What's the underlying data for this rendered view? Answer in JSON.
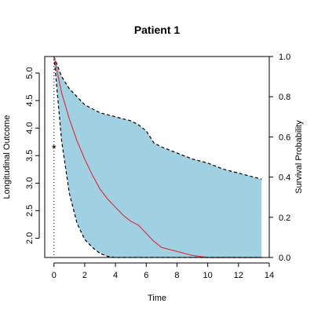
{
  "chart_data": {
    "type": "area",
    "title": "Patient 1",
    "xlabel": "Time",
    "ylabel_left": "Longitudinal Outcome",
    "ylabel_right": "Survival Probability",
    "xlim": [
      -0.6,
      14
    ],
    "ylim_left": [
      1.65,
      5.3
    ],
    "ylim_right": [
      0,
      1
    ],
    "x_ticks": [
      "0",
      "2",
      "4",
      "6",
      "8",
      "10",
      "12",
      "14"
    ],
    "y_left_ticks": [
      "2.0",
      "2.5",
      "3.0",
      "3.5",
      "4.0",
      "4.5",
      "5.0"
    ],
    "y_right_ticks": [
      "0.0",
      "0.2",
      "0.4",
      "0.6",
      "0.8",
      "1.0"
    ],
    "last_visit_time": 0,
    "observed_measurement": {
      "x": 0,
      "y": 3.63,
      "marker": "*"
    },
    "survival_mean": {
      "name": "Survival Probability",
      "color": "#e0323f",
      "x": [
        0,
        0.5,
        1,
        1.5,
        2,
        2.5,
        3,
        3.5,
        4,
        4.5,
        5,
        5.5,
        6,
        6.5,
        7,
        8,
        9,
        10,
        11,
        12,
        13.5
      ],
      "y": [
        1.0,
        0.82,
        0.69,
        0.58,
        0.49,
        0.41,
        0.34,
        0.29,
        0.25,
        0.21,
        0.18,
        0.16,
        0.12,
        0.08,
        0.05,
        0.03,
        0.01,
        0.0,
        0.0,
        0.0,
        0.0
      ]
    },
    "survival_upper": {
      "x": [
        0,
        0.5,
        1,
        1.5,
        2,
        2.5,
        3,
        3.5,
        4,
        4.5,
        5,
        5.5,
        6,
        6.5,
        7,
        8,
        9,
        10,
        11,
        12,
        13,
        13.5
      ],
      "y": [
        1.0,
        0.9,
        0.84,
        0.8,
        0.76,
        0.74,
        0.72,
        0.71,
        0.7,
        0.69,
        0.68,
        0.66,
        0.63,
        0.57,
        0.55,
        0.52,
        0.49,
        0.47,
        0.44,
        0.42,
        0.4,
        0.39
      ]
    },
    "survival_lower": {
      "x": [
        0,
        0.5,
        1,
        1.5,
        2,
        2.5,
        3,
        3.5,
        4,
        5,
        6,
        8,
        10,
        12,
        13.5
      ],
      "y": [
        1.0,
        0.58,
        0.32,
        0.17,
        0.09,
        0.05,
        0.02,
        0.005,
        0.0,
        0.0,
        0.0,
        0.0,
        0.0,
        0.0,
        0.0
      ]
    },
    "colors": {
      "band": "#9fd1e3",
      "mean": "#e0323f",
      "bounds": "#000000",
      "axes": "#000000"
    },
    "grid": false
  }
}
